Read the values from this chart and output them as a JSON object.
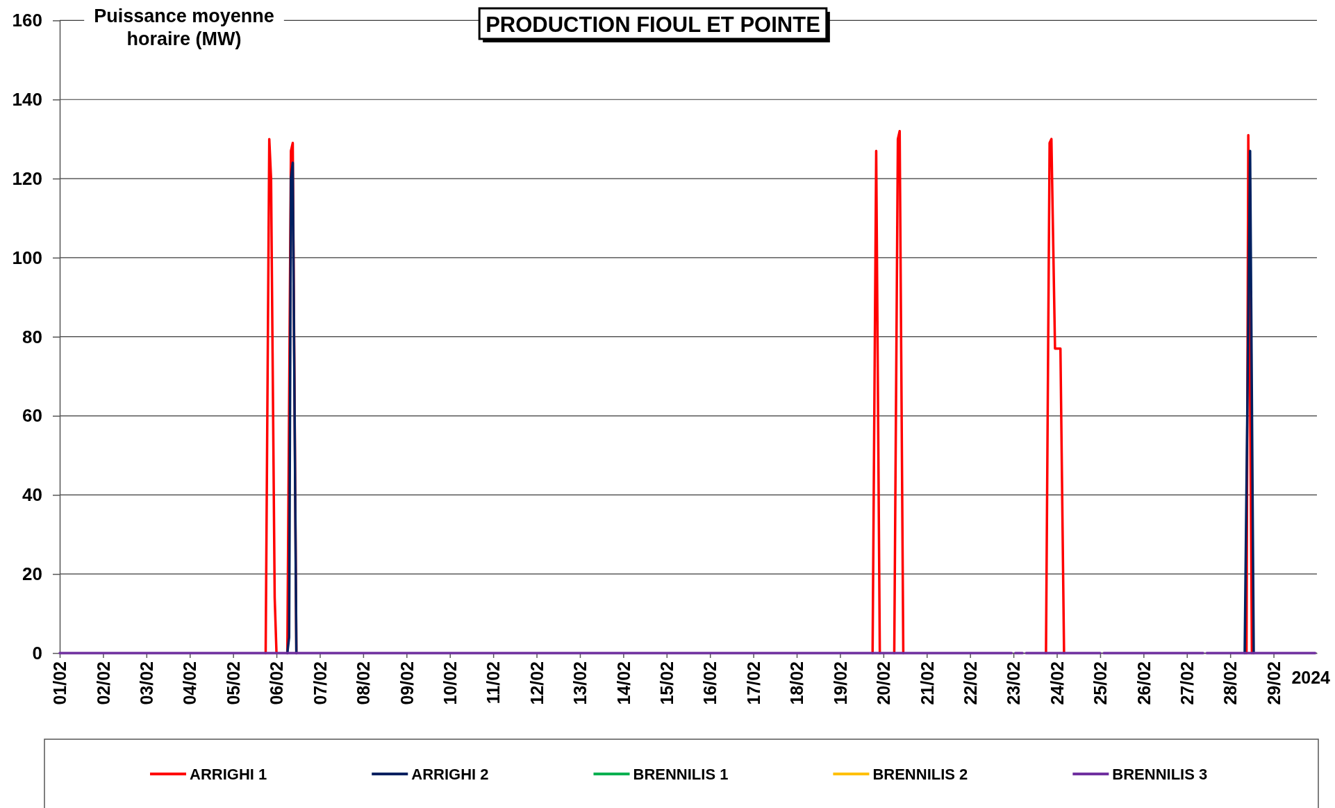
{
  "chart_data": {
    "type": "line",
    "title": "PRODUCTION FIOUL ET POINTE",
    "ylabel": "Puissance moyenne horaire (MW)",
    "xlabel": "2024",
    "xlim": [
      "2024-02-01",
      "2024-03-01"
    ],
    "xticks": [
      {
        "value": "2024-02-01",
        "label": "01/02"
      },
      {
        "value": "2024-02-02",
        "label": "02/02"
      },
      {
        "value": "2024-02-03",
        "label": "03/02"
      },
      {
        "value": "2024-02-04",
        "label": "04/02"
      },
      {
        "value": "2024-02-05",
        "label": "05/02"
      },
      {
        "value": "2024-02-06",
        "label": "06/02"
      },
      {
        "value": "2024-02-07",
        "label": "07/02"
      },
      {
        "value": "2024-02-08",
        "label": "08/02"
      },
      {
        "value": "2024-02-09",
        "label": "09/02"
      },
      {
        "value": "2024-02-10",
        "label": "10/02"
      },
      {
        "value": "2024-02-11",
        "label": "11/02"
      },
      {
        "value": "2024-02-12",
        "label": "12/02"
      },
      {
        "value": "2024-02-13",
        "label": "13/02"
      },
      {
        "value": "2024-02-14",
        "label": "14/02"
      },
      {
        "value": "2024-02-15",
        "label": "15/02"
      },
      {
        "value": "2024-02-16",
        "label": "16/02"
      },
      {
        "value": "2024-02-17",
        "label": "17/02"
      },
      {
        "value": "2024-02-18",
        "label": "18/02"
      },
      {
        "value": "2024-02-19",
        "label": "19/02"
      },
      {
        "value": "2024-02-20",
        "label": "20/02"
      },
      {
        "value": "2024-02-21",
        "label": "21/02"
      },
      {
        "value": "2024-02-22",
        "label": "22/02"
      },
      {
        "value": "2024-02-23",
        "label": "23/02"
      },
      {
        "value": "2024-02-24",
        "label": "24/02"
      },
      {
        "value": "2024-02-25",
        "label": "25/02"
      },
      {
        "value": "2024-02-26",
        "label": "26/02"
      },
      {
        "value": "2024-02-27",
        "label": "27/02"
      },
      {
        "value": "2024-02-28",
        "label": "28/02"
      },
      {
        "value": "2024-02-29",
        "label": "29/02"
      }
    ],
    "ylim": [
      0,
      160
    ],
    "yticks": [
      0,
      20,
      40,
      60,
      80,
      100,
      120,
      140,
      160
    ],
    "grid": "y",
    "legend": "bottom",
    "series": [
      {
        "name": "ARRIGHI 1",
        "color": "#ff0000",
        "x": [
          "2024-02-05T18:00",
          "2024-02-05T20:00",
          "2024-02-05T21:00",
          "2024-02-05T23:00",
          "2024-02-06T00:00",
          "2024-02-06T03:00",
          "2024-02-06T06:00",
          "2024-02-06T08:00",
          "2024-02-06T09:00",
          "2024-02-06T11:00",
          "2024-02-13T00:00",
          "2024-02-19T18:00",
          "2024-02-19T20:00",
          "2024-02-19T22:00",
          "2024-02-20T02:00",
          "2024-02-20T06:00",
          "2024-02-20T08:00",
          "2024-02-20T09:00",
          "2024-02-20T11:00",
          "2024-02-22T00:00",
          "2024-02-23T18:00",
          "2024-02-23T20:00",
          "2024-02-23T21:00",
          "2024-02-23T23:00",
          "2024-02-24T02:00",
          "2024-02-24T04:00",
          "2024-02-26T00:00",
          "2024-02-28T09:00",
          "2024-02-28T10:00",
          "2024-02-28T12:00"
        ],
        "values": [
          0,
          130,
          120,
          14,
          0,
          null,
          0,
          127,
          129,
          0,
          null,
          0,
          127,
          0,
          null,
          0,
          130,
          132,
          0,
          null,
          0,
          129,
          130,
          77,
          77,
          0,
          null,
          0,
          131,
          0
        ]
      },
      {
        "name": "ARRIGHI 2",
        "color": "#002060",
        "x": [
          "2024-02-06T06:00",
          "2024-02-06T07:00",
          "2024-02-06T08:00",
          "2024-02-06T09:00",
          "2024-02-06T11:00",
          "2024-02-15T00:00",
          "2024-02-28T08:00",
          "2024-02-28T11:00",
          "2024-02-28T13:00"
        ],
        "values": [
          0,
          4,
          120,
          124,
          0,
          null,
          0,
          127,
          0
        ]
      },
      {
        "name": "BRENNILIS 1",
        "color": "#00b050"
      },
      {
        "name": "BRENNILIS 2",
        "color": "#ffc000"
      },
      {
        "name": "BRENNILIS 3",
        "color": "#7030a0",
        "x": [
          "2024-02-01T00:00",
          "2024-02-22T23:00",
          "2024-02-23T00:00",
          "2024-02-23T01:00",
          "2024-02-23T05:00",
          "2024-02-23T06:00",
          "2024-02-23T07:00",
          "2024-02-25T00:00",
          "2024-02-25T01:00",
          "2024-02-25T02:00",
          "2024-02-27T09:00",
          "2024-02-27T10:00",
          "2024-02-27T11:00",
          "2024-02-29T23:00"
        ],
        "values": [
          0,
          0,
          null,
          0,
          0,
          null,
          0,
          0,
          null,
          0,
          0,
          null,
          0,
          0
        ]
      }
    ]
  }
}
